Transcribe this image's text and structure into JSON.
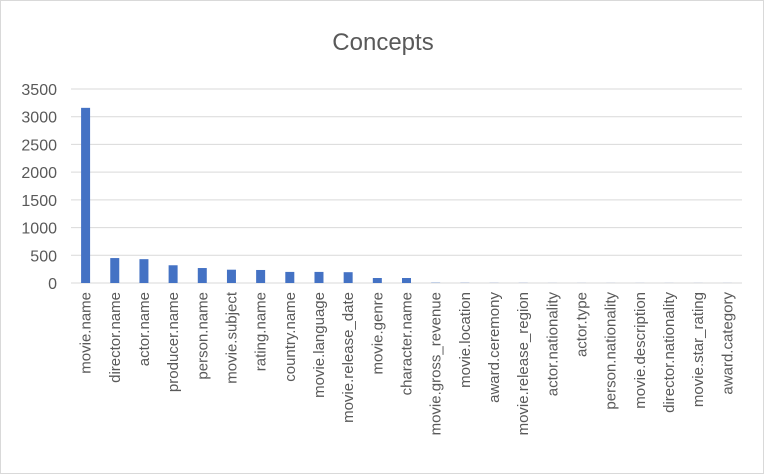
{
  "chart_data": {
    "type": "bar",
    "title": "Concepts",
    "xlabel": "",
    "ylabel": "",
    "ylim": [
      0,
      3500
    ],
    "yticks": [
      0,
      500,
      1000,
      1500,
      2000,
      2500,
      3000,
      3500
    ],
    "grid": true,
    "legend": "none",
    "categories": [
      "movie.name",
      "director.name",
      "actor.name",
      "producer.name",
      "person.name",
      "movie.subject",
      "rating.name",
      "country.name",
      "movie.language",
      "movie.release_date",
      "movie.genre",
      "character.name",
      "movie.gross_revenue",
      "movie.location",
      "award.ceremony",
      "movie.release_region",
      "actor.nationality",
      "actor.type",
      "person.nationality",
      "movie.description",
      "director.nationality",
      "movie.star_rating",
      "award.category"
    ],
    "values": [
      3160,
      450,
      430,
      320,
      270,
      240,
      235,
      200,
      200,
      195,
      90,
      90,
      5,
      3,
      2,
      2,
      1,
      1,
      1,
      1,
      1,
      1,
      1
    ],
    "colors": {
      "bar": "#4472c4",
      "grid": "#d9d9d9",
      "text": "#595959"
    }
  }
}
